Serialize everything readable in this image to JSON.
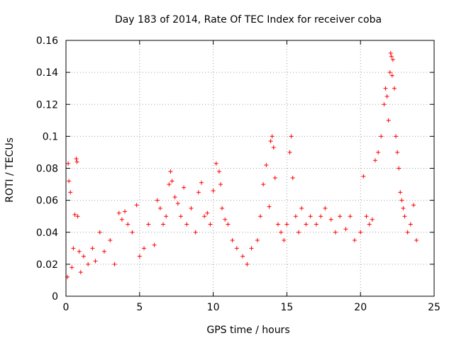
{
  "chart_data": {
    "type": "scatter",
    "title": "Day 183 of 2014, Rate Of TEC Index for receiver coba",
    "xlabel": "GPS time / hours",
    "ylabel": "ROTI / TECUs",
    "xlim": [
      0,
      25
    ],
    "ylim": [
      0,
      0.16
    ],
    "xticks": [
      0,
      5,
      10,
      15,
      20,
      25
    ],
    "xtick_labels": [
      "0",
      "5",
      "10",
      "15",
      "20",
      "25"
    ],
    "yticks": [
      0,
      0.02,
      0.04,
      0.06,
      0.08,
      0.1,
      0.12,
      0.14,
      0.16
    ],
    "ytick_labels": [
      "0",
      "0.02",
      "0.04",
      "0.06",
      "0.08",
      "0.1",
      "0.12",
      "0.14",
      "0.16"
    ],
    "grid": true,
    "legend": "none",
    "marker": "+",
    "series": [
      {
        "name": "ROTI",
        "color": "#ff0000",
        "x": [
          0.1,
          0.15,
          0.2,
          0.3,
          0.4,
          0.5,
          0.6,
          0.7,
          0.75,
          0.8,
          0.9,
          1.0,
          1.2,
          1.5,
          1.8,
          2.0,
          2.3,
          2.6,
          3.0,
          3.3,
          3.6,
          3.8,
          4.0,
          4.2,
          4.5,
          4.8,
          5.0,
          5.3,
          5.6,
          6.0,
          6.2,
          6.4,
          6.6,
          6.8,
          7.0,
          7.1,
          7.2,
          7.4,
          7.6,
          7.8,
          8.0,
          8.2,
          8.5,
          8.8,
          9.0,
          9.2,
          9.4,
          9.6,
          9.8,
          10.0,
          10.2,
          10.4,
          10.5,
          10.6,
          10.8,
          11.0,
          11.3,
          11.6,
          12.0,
          12.3,
          12.6,
          13.0,
          13.2,
          13.4,
          13.6,
          13.8,
          13.9,
          14.0,
          14.1,
          14.2,
          14.4,
          14.6,
          14.8,
          15.0,
          15.2,
          15.3,
          15.4,
          15.6,
          15.8,
          16.0,
          16.3,
          16.6,
          17.0,
          17.3,
          17.6,
          18.0,
          18.3,
          18.6,
          19.0,
          19.3,
          19.6,
          20.0,
          20.2,
          20.4,
          20.6,
          20.8,
          21.0,
          21.2,
          21.4,
          21.6,
          21.7,
          21.8,
          21.9,
          22.0,
          22.05,
          22.1,
          22.15,
          22.2,
          22.3,
          22.4,
          22.5,
          22.6,
          22.7,
          22.8,
          22.9,
          23.0,
          23.2,
          23.4,
          23.6,
          23.8
        ],
        "y": [
          0.012,
          0.083,
          0.072,
          0.065,
          0.018,
          0.03,
          0.051,
          0.086,
          0.084,
          0.05,
          0.028,
          0.015,
          0.025,
          0.02,
          0.03,
          0.022,
          0.04,
          0.028,
          0.035,
          0.02,
          0.052,
          0.048,
          0.053,
          0.045,
          0.04,
          0.057,
          0.025,
          0.03,
          0.045,
          0.032,
          0.06,
          0.055,
          0.045,
          0.05,
          0.07,
          0.078,
          0.072,
          0.062,
          0.058,
          0.05,
          0.068,
          0.045,
          0.055,
          0.04,
          0.065,
          0.071,
          0.05,
          0.052,
          0.045,
          0.066,
          0.083,
          0.078,
          0.07,
          0.055,
          0.048,
          0.045,
          0.035,
          0.03,
          0.025,
          0.02,
          0.03,
          0.035,
          0.05,
          0.07,
          0.082,
          0.056,
          0.097,
          0.1,
          0.093,
          0.074,
          0.045,
          0.04,
          0.035,
          0.045,
          0.09,
          0.1,
          0.074,
          0.05,
          0.04,
          0.055,
          0.045,
          0.05,
          0.045,
          0.05,
          0.055,
          0.048,
          0.04,
          0.05,
          0.042,
          0.05,
          0.035,
          0.04,
          0.075,
          0.05,
          0.045,
          0.048,
          0.085,
          0.09,
          0.1,
          0.12,
          0.13,
          0.125,
          0.11,
          0.14,
          0.152,
          0.15,
          0.138,
          0.148,
          0.13,
          0.1,
          0.09,
          0.08,
          0.065,
          0.06,
          0.055,
          0.05,
          0.04,
          0.045,
          0.057,
          0.035
        ]
      }
    ]
  }
}
